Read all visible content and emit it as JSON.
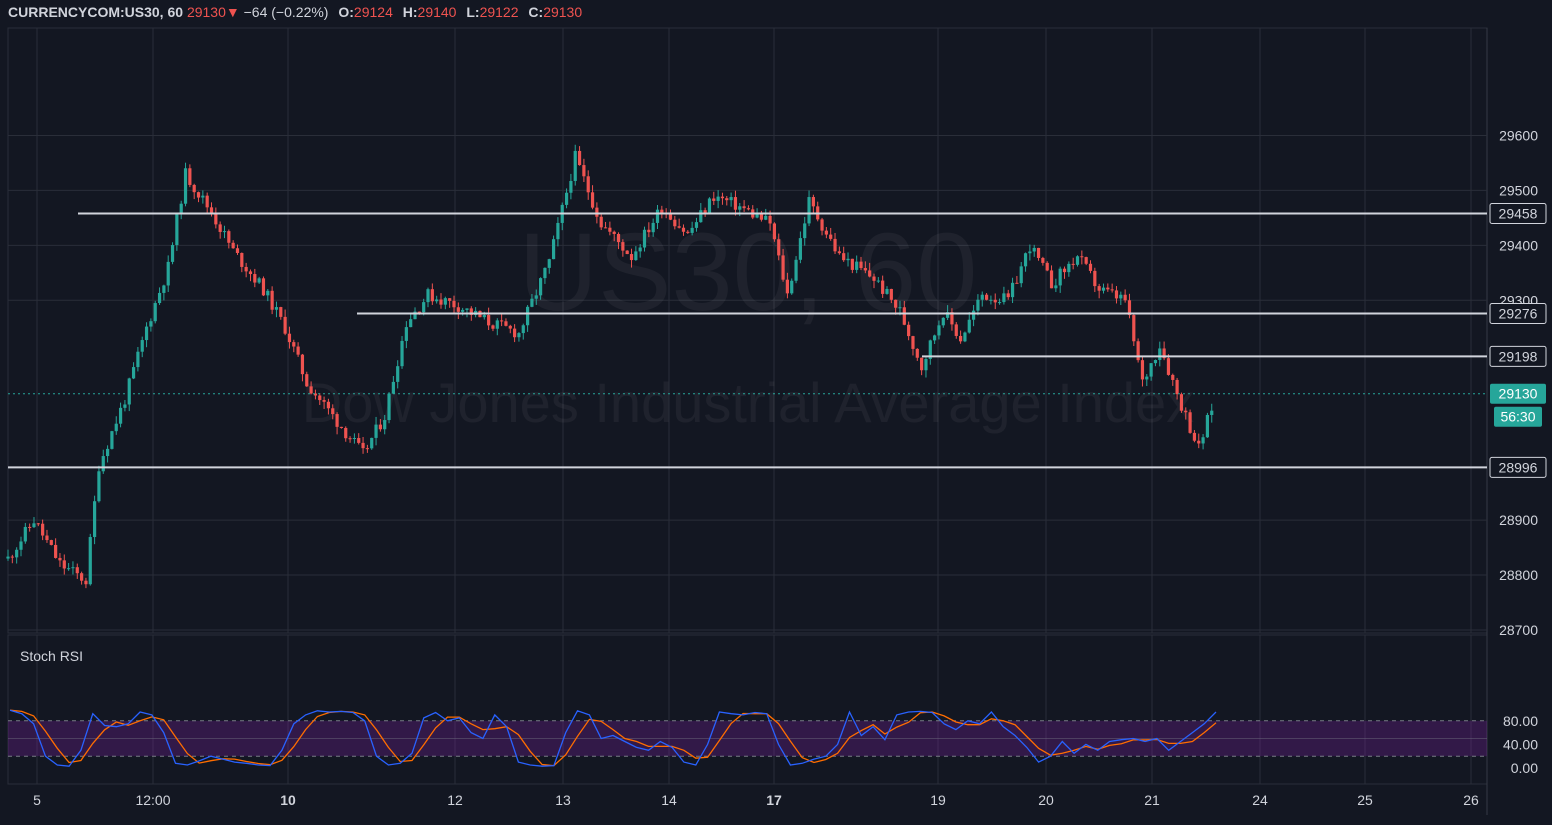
{
  "header": {
    "symbol": "CURRENCYCOM:US30, 60",
    "last": "29130",
    "change_arrow": "▼",
    "change": "−64 (−0.22%)",
    "o_label": "O:",
    "o_value": "29124",
    "h_label": "H:",
    "h_value": "29140",
    "l_label": "L:",
    "l_value": "29122",
    "c_label": "C:",
    "c_value": "29130"
  },
  "watermark": {
    "line1": "US30, 60",
    "line2": "Dow Jones Industrial Average Index"
  },
  "colors": {
    "background": "#131722",
    "grid": "#2a2e39",
    "up": "#26a69a",
    "down": "#ef5350",
    "hline": "#d1d4dc",
    "rsi_k": "#2962ff",
    "rsi_d": "#ff6d00",
    "rsi_band": "#7b1fa2",
    "price_label": "#26a69a"
  },
  "chart_data": [
    {
      "type": "candlestick",
      "title": "CURRENCYCOM:US30, 60",
      "x_ticks": [
        "5",
        "12:00",
        "10",
        "12",
        "13",
        "14",
        "17",
        "19",
        "20",
        "21",
        "24",
        "25",
        "26"
      ],
      "y_ticks": [
        "29600",
        "29500",
        "29400",
        "29300",
        "28900",
        "28800",
        "28700"
      ],
      "ylim": [
        28695,
        29700
      ],
      "horizontal_levels": [
        "29458",
        "29276",
        "29198",
        "28996"
      ],
      "last_price": "29130",
      "countdown": "56:30",
      "path": [
        [
          0,
          28830
        ],
        [
          0.3,
          28900
        ],
        [
          0.6,
          28820
        ],
        [
          0.9,
          28790
        ],
        [
          1.05,
          29000
        ],
        [
          1.35,
          29120
        ],
        [
          1.6,
          29250
        ],
        [
          1.85,
          29360
        ],
        [
          2.05,
          29530
        ],
        [
          2.35,
          29460
        ],
        [
          2.6,
          29390
        ],
        [
          2.95,
          29320
        ],
        [
          3.2,
          29250
        ],
        [
          3.45,
          29150
        ],
        [
          3.65,
          29110
        ],
        [
          3.9,
          29060
        ],
        [
          4.1,
          29020
        ],
        [
          4.35,
          29090
        ],
        [
          4.6,
          29260
        ],
        [
          4.85,
          29310
        ],
        [
          5.2,
          29290
        ],
        [
          5.55,
          29260
        ],
        [
          5.9,
          29240
        ],
        [
          6.25,
          29370
        ],
        [
          6.55,
          29560
        ],
        [
          6.85,
          29440
        ],
        [
          7.2,
          29380
        ],
        [
          7.55,
          29470
        ],
        [
          7.85,
          29420
        ],
        [
          8.15,
          29490
        ],
        [
          8.45,
          29470
        ],
        [
          8.8,
          29440
        ],
        [
          9.0,
          29310
        ],
        [
          9.25,
          29480
        ],
        [
          9.6,
          29380
        ],
        [
          10.0,
          29340
        ],
        [
          10.3,
          29280
        ],
        [
          10.55,
          29180
        ],
        [
          10.8,
          29280
        ],
        [
          11.0,
          29230
        ],
        [
          11.25,
          29310
        ],
        [
          11.55,
          29300
        ],
        [
          11.8,
          29400
        ],
        [
          12.05,
          29330
        ],
        [
          12.35,
          29380
        ],
        [
          12.6,
          29320
        ],
        [
          12.9,
          29300
        ],
        [
          13.1,
          29150
        ],
        [
          13.3,
          29220
        ],
        [
          13.5,
          29130
        ],
        [
          13.75,
          29030
        ],
        [
          13.95,
          29130
        ]
      ],
      "indicator": {
        "name": "Stoch RSI",
        "y_ticks": [
          "80.00",
          "40.00",
          "0.00"
        ],
        "upper_band": 80,
        "lower_band": 20,
        "k": [
          98,
          92,
          75,
          20,
          5,
          3,
          30,
          92,
          72,
          70,
          75,
          95,
          90,
          60,
          8,
          5,
          12,
          20,
          15,
          10,
          8,
          5,
          4,
          30,
          75,
          90,
          97,
          95,
          96,
          94,
          80,
          20,
          5,
          8,
          25,
          85,
          94,
          80,
          85,
          60,
          50,
          90,
          70,
          10,
          5,
          3,
          4,
          60,
          97,
          90,
          50,
          55,
          45,
          35,
          30,
          45,
          35,
          10,
          5,
          40,
          95,
          92,
          90,
          94,
          92,
          40,
          5,
          8,
          15,
          20,
          40,
          95,
          55,
          70,
          48,
          90,
          95,
          96,
          94,
          75,
          65,
          80,
          75,
          95,
          70,
          55,
          35,
          10,
          20,
          45,
          25,
          40,
          30,
          45,
          48,
          50,
          45,
          50,
          30,
          45,
          60,
          75,
          95
        ]
      }
    }
  ]
}
